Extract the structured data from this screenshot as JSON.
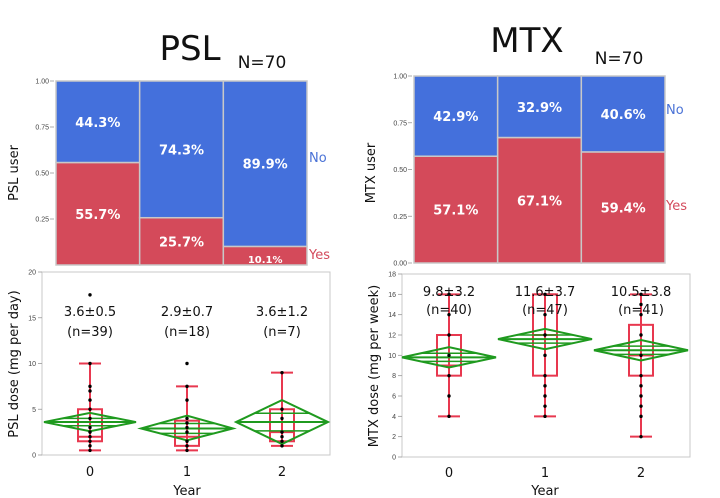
{
  "colors": {
    "no": "#4470dc",
    "yes": "#d44a5a",
    "no_text": "#4a72d6",
    "yes_text": "#d34a5c",
    "box": "#e8384f",
    "diamond": "#1f9a1f",
    "point": "#000000",
    "frame": "#c8c8c8",
    "divider": "#c8c8c8"
  },
  "chart_data": [
    {
      "id": "psl_mosaic",
      "type": "bar",
      "subtype": "mosaic-stacked-100",
      "title": "PSL",
      "annotation": "N=70",
      "ylabel": "PSL user",
      "xlabel": "",
      "ylim": [
        0,
        1
      ],
      "yticks": [
        "0.25",
        "0.50",
        "0.75",
        "1.00"
      ],
      "ytick_values": [
        0.25,
        0.5,
        0.75,
        1.0
      ],
      "categories": [
        "0",
        "1",
        "2"
      ],
      "series": [
        {
          "name": "Yes",
          "values": [
            0.557,
            0.257,
            0.101
          ],
          "labels": [
            "55.7%",
            "25.7%",
            "10.1%"
          ]
        },
        {
          "name": "No",
          "values": [
            0.443,
            0.743,
            0.899
          ],
          "labels": [
            "44.3%",
            "74.3%",
            "89.9%"
          ]
        }
      ],
      "legend": [
        "No",
        "Yes"
      ],
      "legend_position": "right"
    },
    {
      "id": "mtx_mosaic",
      "type": "bar",
      "subtype": "mosaic-stacked-100",
      "title": "MTX",
      "annotation": "N=70",
      "ylabel": "MTX user",
      "xlabel": "",
      "ylim": [
        0,
        1
      ],
      "yticks": [
        "0.00",
        "0.25",
        "0.50",
        "0.75",
        "1.00"
      ],
      "ytick_values": [
        0,
        0.25,
        0.5,
        0.75,
        1.0
      ],
      "categories": [
        "0",
        "1",
        "2"
      ],
      "series": [
        {
          "name": "Yes",
          "values": [
            0.571,
            0.671,
            0.594
          ],
          "labels": [
            "57.1%",
            "67.1%",
            "59.4%"
          ]
        },
        {
          "name": "No",
          "values": [
            0.429,
            0.329,
            0.406
          ],
          "labels": [
            "42.9%",
            "32.9%",
            "40.6%"
          ]
        }
      ],
      "legend": [
        "No",
        "Yes"
      ],
      "legend_position": "right"
    },
    {
      "id": "psl_dose",
      "type": "box",
      "title": "",
      "ylabel": "PSL dose (mg per day)",
      "xlabel": "Year",
      "ylim": [
        0,
        20
      ],
      "yticks": [
        "0",
        "5",
        "10",
        "15",
        "20"
      ],
      "ytick_values": [
        0,
        5,
        10,
        15,
        20
      ],
      "categories": [
        "0",
        "1",
        "2"
      ],
      "groups": [
        {
          "label": "0",
          "stat": "3.6±0.5",
          "n": "(n=39)",
          "mean": 3.6,
          "ci": [
            2.6,
            4.6
          ],
          "whisker_low": 0.5,
          "q1": 1.5,
          "median": 2.0,
          "q3": 5.0,
          "whisker_high": 10.0,
          "points": [
            0.5,
            1,
            1.5,
            2,
            2.5,
            3,
            4,
            5,
            6,
            7,
            7.5,
            10,
            17.5
          ]
        },
        {
          "label": "1",
          "stat": "2.9±0.7",
          "n": "(n=18)",
          "mean": 2.9,
          "ci": [
            1.6,
            4.3
          ],
          "whisker_low": 0.5,
          "q1": 1.0,
          "median": 2.0,
          "q3": 3.75,
          "whisker_high": 7.5,
          "points": [
            0.5,
            1,
            1.5,
            2.5,
            3,
            3.5,
            4,
            6,
            7.5,
            10
          ]
        },
        {
          "label": "2",
          "stat": "3.6±1.2",
          "n": "(n=7)",
          "mean": 3.6,
          "ci": [
            1.2,
            6.0
          ],
          "whisker_low": 1.0,
          "q1": 1.5,
          "median": 2.5,
          "q3": 5.0,
          "whisker_high": 9.0,
          "points": [
            1,
            1.5,
            2,
            2.5,
            4,
            5,
            9
          ]
        }
      ]
    },
    {
      "id": "mtx_dose",
      "type": "box",
      "title": "",
      "ylabel": "MTX dose (mg per week)",
      "xlabel": "Year",
      "ylim": [
        0,
        18
      ],
      "yticks": [
        "0",
        "2",
        "4",
        "6",
        "8",
        "10",
        "12",
        "14",
        "16",
        "18"
      ],
      "ytick_values": [
        0,
        2,
        4,
        6,
        8,
        10,
        12,
        14,
        16,
        18
      ],
      "categories": [
        "0",
        "1",
        "2"
      ],
      "groups": [
        {
          "label": "0",
          "stat": "9.8±3.2",
          "n": "(n=40)",
          "mean": 9.8,
          "ci": [
            8.8,
            10.8
          ],
          "whisker_low": 4,
          "q1": 8,
          "median": 9,
          "q3": 12,
          "whisker_high": 16,
          "points": [
            4,
            6,
            8,
            10,
            12,
            14,
            16
          ]
        },
        {
          "label": "1",
          "stat": "11.6±3.7",
          "n": "(n=47)",
          "mean": 11.6,
          "ci": [
            10.6,
            12.6
          ],
          "whisker_low": 4,
          "q1": 8,
          "median": 12,
          "q3": 16,
          "whisker_high": 16,
          "points": [
            4,
            5,
            6,
            7,
            8,
            10,
            12,
            14,
            16
          ]
        },
        {
          "label": "2",
          "stat": "10.5±3.8",
          "n": "(n=41)",
          "mean": 10.5,
          "ci": [
            9.5,
            11.5
          ],
          "whisker_low": 2,
          "q1": 8,
          "median": 10,
          "q3": 13,
          "whisker_high": 16,
          "points": [
            2,
            4,
            5,
            6,
            7,
            8,
            10,
            12,
            14,
            15,
            16
          ]
        }
      ]
    }
  ]
}
